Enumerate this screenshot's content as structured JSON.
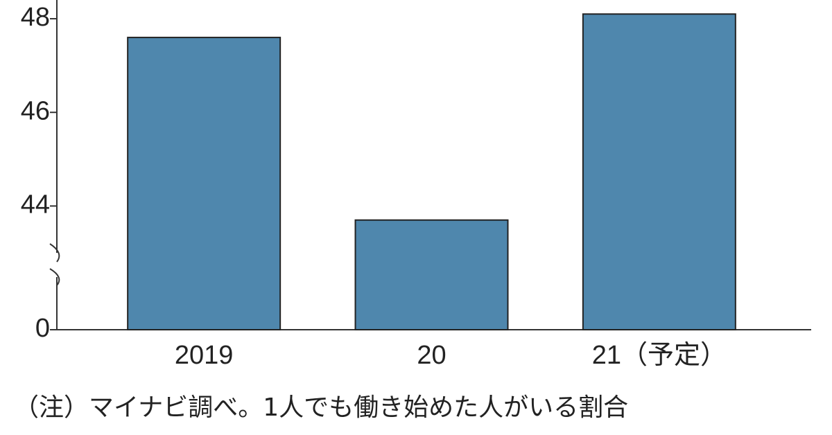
{
  "chart_data": {
    "type": "bar",
    "categories": [
      "2019",
      "20",
      "21（予定）"
    ],
    "values": [
      47.6,
      43.7,
      48.1
    ],
    "color": "#4f87ad",
    "ylim": [
      0,
      48.4
    ],
    "yticks": [
      0,
      44,
      46,
      48
    ],
    "ybreak": 43,
    "grid": false,
    "note": "（注）マイナビ調べ。1人でも働き始めた人がいる割合"
  }
}
